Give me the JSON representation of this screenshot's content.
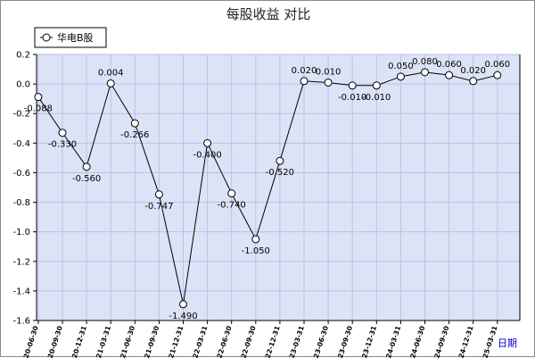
{
  "chart_data": {
    "type": "line",
    "title": "每股收益  对比",
    "xlabel": "日期",
    "ylabel": "",
    "ylim": [
      -1.6,
      0.2
    ],
    "yticks": [
      0.2,
      0.0,
      -0.2,
      -0.4,
      -0.6,
      -0.8,
      -1.0,
      -1.2,
      -1.4,
      -1.6
    ],
    "ytick_labels": [
      "0.2",
      "0.0",
      "-0.2",
      "-0.4",
      "-0.6",
      "-0.8",
      "-1.0",
      "-1.2",
      "-1.4",
      "-1.6"
    ],
    "grid": true,
    "legend_position": "top-left",
    "colors": {
      "plot_bg": "#dde3f7",
      "grid": "#b8c2e4",
      "line": "#000000",
      "marker_fill": "#ffffff",
      "xlabel": "#0000cc"
    },
    "categories": [
      "2020-06-30",
      "2020-09-30",
      "2020-12-31",
      "2021-03-31",
      "2021-06-30",
      "2021-09-30",
      "2021-12-31",
      "2022-03-31",
      "2022-06-30",
      "2022-09-30",
      "2022-12-31",
      "2023-03-31",
      "2023-06-30",
      "2023-09-30",
      "2023-12-31",
      "2024-03-31",
      "2024-06-30",
      "2024-09-30",
      "2024-12-31",
      "2025-03-31"
    ],
    "series": [
      {
        "name": "华电B股",
        "values": [
          -0.088,
          -0.33,
          -0.56,
          0.004,
          -0.266,
          -0.747,
          -1.49,
          -0.4,
          -0.74,
          -1.05,
          -0.52,
          0.02,
          0.01,
          -0.01,
          -0.01,
          0.05,
          0.08,
          0.06,
          0.02,
          0.06
        ],
        "labels": [
          "-0.088",
          "-0.330",
          "-0.560",
          "0.004",
          "-0.266",
          "-0.747",
          "-1.490",
          "-0.400",
          "-0.740",
          "-1.050",
          "-0.520",
          "0.020",
          "0.010",
          "-0.010",
          "-0.010",
          "0.050",
          "0.080",
          "0.060",
          "0.020",
          "0.060"
        ]
      }
    ]
  }
}
